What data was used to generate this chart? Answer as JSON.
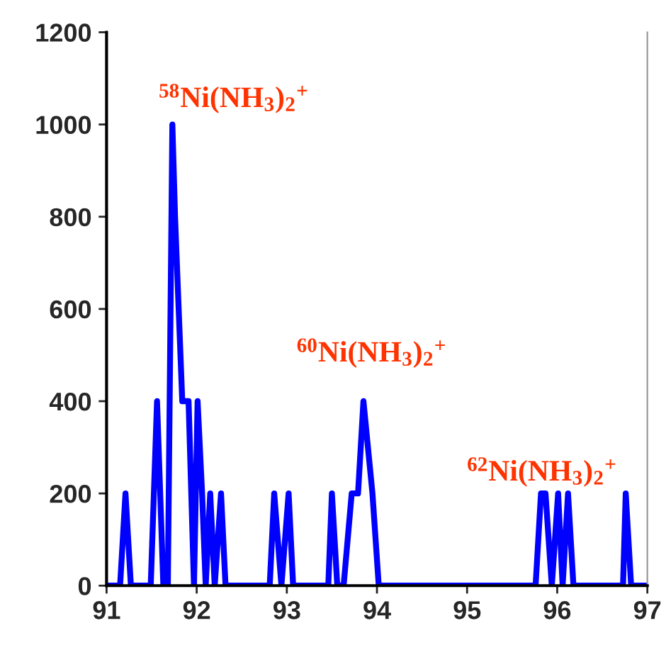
{
  "chart_data": {
    "type": "line",
    "x": [
      91.0,
      91.15,
      91.21,
      91.27,
      91.49,
      91.56,
      91.63,
      91.68,
      91.73,
      91.76,
      91.8,
      91.84,
      91.91,
      91.97,
      92.01,
      92.06,
      92.1,
      92.15,
      92.2,
      92.27,
      92.32,
      92.81,
      92.86,
      92.94,
      93.02,
      93.07,
      93.46,
      93.5,
      93.56,
      93.63,
      93.72,
      93.79,
      93.85,
      93.95,
      94.02,
      95.76,
      95.82,
      95.87,
      95.94,
      96.01,
      96.06,
      96.12,
      96.18,
      96.73,
      96.76,
      96.82,
      97.0
    ],
    "series": [
      {
        "color": "#0000ff",
        "values": [
          0,
          0,
          200,
          0,
          0,
          400,
          0,
          0,
          1000,
          800,
          600,
          400,
          400,
          0,
          400,
          200,
          0,
          200,
          0,
          200,
          0,
          0,
          200,
          0,
          200,
          0,
          0,
          200,
          0,
          0,
          200,
          200,
          400,
          200,
          0,
          0,
          200,
          200,
          0,
          200,
          0,
          200,
          0,
          0,
          200,
          0,
          0
        ]
      }
    ],
    "xlim": [
      91,
      97
    ],
    "xticks": [
      91,
      92,
      93,
      94,
      95,
      96,
      97
    ],
    "ylim": [
      0,
      1200
    ],
    "yticks": [
      0,
      200,
      400,
      600,
      800,
      1000,
      1200
    ],
    "grid": false,
    "line_style": "solid",
    "marker": "none",
    "annotations": [
      "$^{58}$Ni(NH$_{3}$)$_{2}$$^{+}$",
      "$^{60}$Ni(NH$_{3}$)$_{2}$$^{+}$",
      "$^{62}$Ni(NH$_{3}$)$_{2}$$^{+}$"
    ]
  }
}
